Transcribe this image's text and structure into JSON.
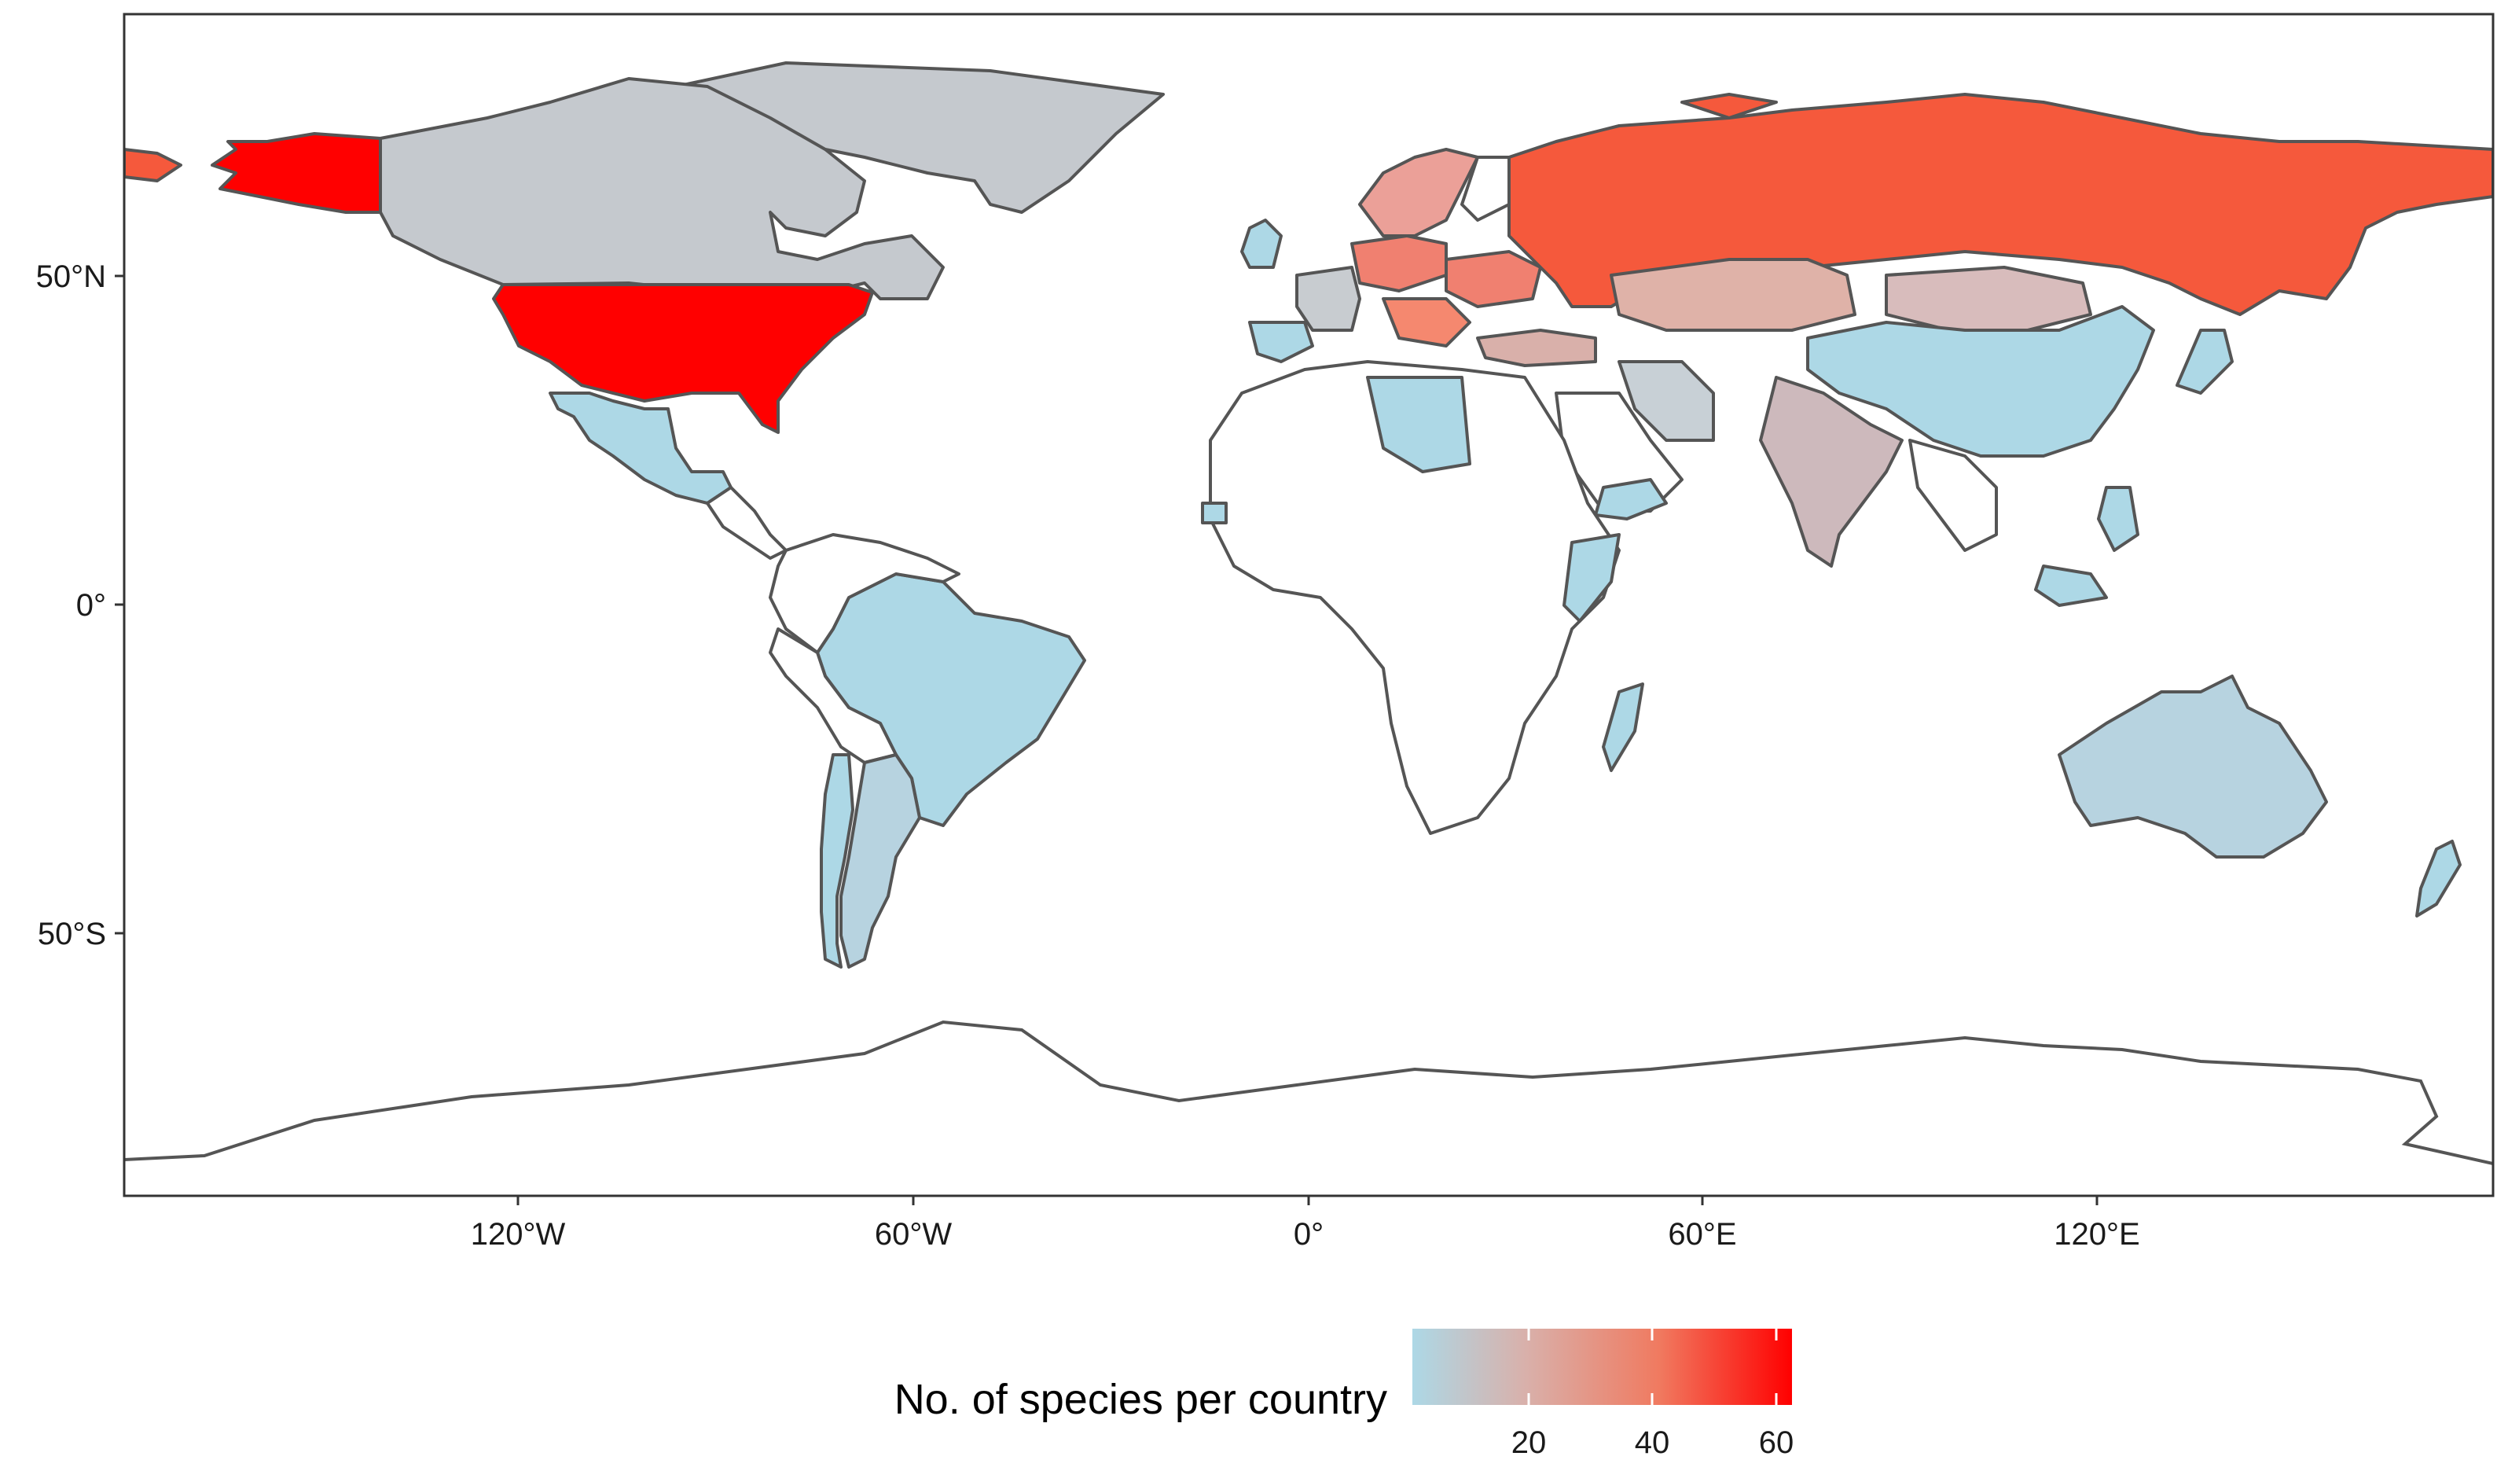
{
  "map": {
    "x_ticks": [
      "120°W",
      "60°W",
      "0°",
      "60°E",
      "120°E"
    ],
    "y_ticks": [
      "50°N",
      "0°",
      "50°S"
    ],
    "colors": {
      "low": "#add8e6",
      "mid": "#d9b0aa",
      "high": "#ff0000",
      "none": "#ffffff",
      "border": "#555555"
    }
  },
  "legend": {
    "title": "No. of species per country",
    "ticks": [
      "20",
      "40",
      "60"
    ],
    "range": [
      3,
      62
    ]
  },
  "chart_data": {
    "type": "map",
    "title": "",
    "xlabel": "",
    "ylabel": "",
    "xlim": [
      -180,
      180
    ],
    "ylim": [
      -90,
      90
    ],
    "legend_placement": "bottom",
    "regions": [
      {
        "name": "USA",
        "value": 62
      },
      {
        "name": "Russia",
        "value": 55
      },
      {
        "name": "Canada",
        "value": 10
      },
      {
        "name": "Greenland",
        "value": 9
      },
      {
        "name": "Mexico",
        "value": 3
      },
      {
        "name": "Brazil",
        "value": 3
      },
      {
        "name": "Argentina",
        "value": 5
      },
      {
        "name": "Chile",
        "value": 5
      },
      {
        "name": "Uruguay",
        "value": 5
      },
      {
        "name": "China",
        "value": 3
      },
      {
        "name": "India",
        "value": 15
      },
      {
        "name": "Kazakhstan",
        "value": 25
      },
      {
        "name": "Mongolia",
        "value": 20
      },
      {
        "name": "Iran",
        "value": 8
      },
      {
        "name": "Turkey",
        "value": 28
      },
      {
        "name": "Australia",
        "value": 5
      },
      {
        "name": "New Zealand",
        "value": 4
      },
      {
        "name": "Japan",
        "value": 5
      },
      {
        "name": "Libya",
        "value": 3
      },
      {
        "name": "Madagascar",
        "value": 3
      },
      {
        "name": "Somalia",
        "value": 3
      },
      {
        "name": "Yemen",
        "value": 3
      },
      {
        "name": "Sweden",
        "value": 35
      },
      {
        "name": "Norway",
        "value": 35
      },
      {
        "name": "Finland",
        "value": 30
      },
      {
        "name": "Germany",
        "value": 40
      },
      {
        "name": "Poland",
        "value": 38
      },
      {
        "name": "Ukraine",
        "value": 40
      },
      {
        "name": "Romania",
        "value": 42
      },
      {
        "name": "France",
        "value": 10
      },
      {
        "name": "Spain",
        "value": 6
      },
      {
        "name": "United Kingdom",
        "value": 4
      },
      {
        "name": "Italy",
        "value": 8
      },
      {
        "name": "Indonesia",
        "value": 4
      },
      {
        "name": "Philippines",
        "value": 4
      }
    ]
  }
}
